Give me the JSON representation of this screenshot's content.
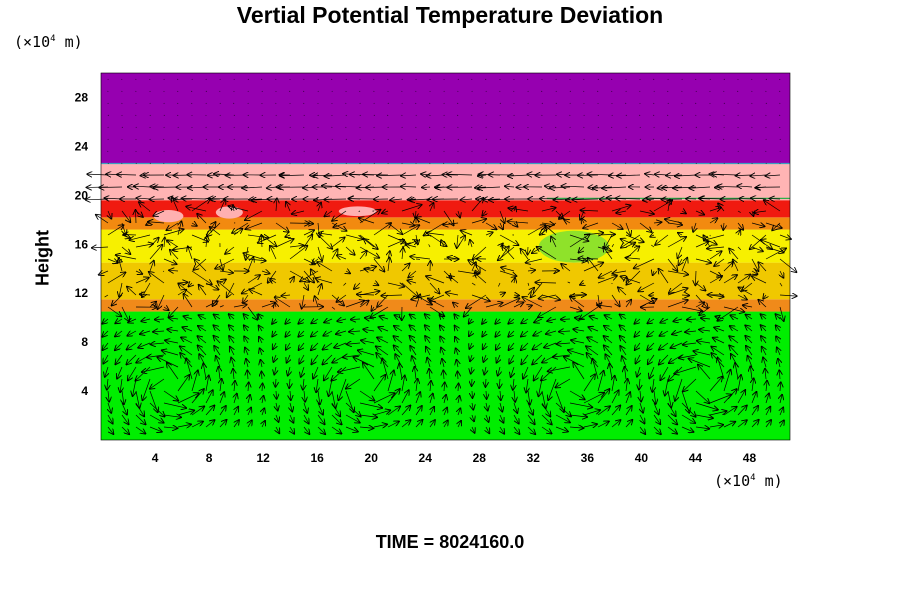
{
  "chart_data": {
    "type": "heatmap",
    "title": "Vertial Potential Temperature Deviation",
    "ylabel": "Height",
    "x_unit": {
      "prefix": "(×10",
      "exp": "4",
      "suffix": " m)"
    },
    "y_unit": {
      "prefix": "(×10",
      "exp": "4",
      "suffix": " m)"
    },
    "xlim": [
      0,
      51
    ],
    "ylim": [
      0,
      30
    ],
    "x_ticks": [
      4,
      8,
      12,
      16,
      20,
      24,
      28,
      32,
      36,
      40,
      44,
      48
    ],
    "y_ticks": [
      4,
      8,
      12,
      16,
      20,
      24,
      28
    ],
    "grid": false,
    "bands": [
      {
        "y0": 0,
        "y1": 10.5,
        "color": "#00ee00",
        "level": "green"
      },
      {
        "y0": 10.5,
        "y1": 11.5,
        "color": "#f08a1a",
        "level": "orange"
      },
      {
        "y0": 11.5,
        "y1": 14.5,
        "color": "#f0c800",
        "level": "yellow-orange"
      },
      {
        "y0": 14.5,
        "y1": 17.2,
        "color": "#f7f000",
        "level": "yellow"
      },
      {
        "y0": 17.2,
        "y1": 18.2,
        "color": "#f28a10",
        "level": "orange"
      },
      {
        "y0": 18.2,
        "y1": 19.6,
        "color": "#f01a10",
        "level": "red"
      },
      {
        "y0": 19.6,
        "y1": 22.6,
        "color": "#ffb4b4",
        "level": "pink"
      },
      {
        "y0": 22.6,
        "y1": 30,
        "color": "#9600b0",
        "level": "purple"
      }
    ],
    "overlay": "velocity-vector-field",
    "vortex_centers_x": [
      5,
      19.5,
      35,
      44.5
    ]
  },
  "footer": {
    "label": "TIME = 8024160.0"
  }
}
